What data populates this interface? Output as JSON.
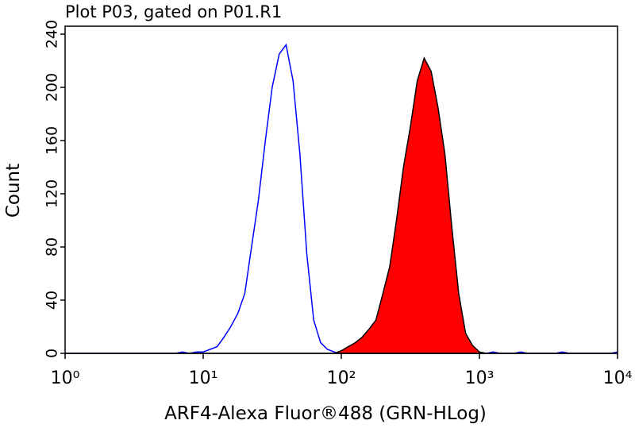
{
  "chart_data": {
    "type": "line",
    "title": "Plot P03, gated on P01.R1",
    "xlabel": "ARF4-Alexa Fluor®488 (GRN-HLog)",
    "ylabel": "Count",
    "xscale": "log",
    "xlim": [
      1,
      10000
    ],
    "xticks": [
      {
        "value": 1,
        "label": "10⁰"
      },
      {
        "value": 10,
        "label": "10¹"
      },
      {
        "value": 100,
        "label": "10²"
      },
      {
        "value": 1000,
        "label": "10³"
      },
      {
        "value": 10000,
        "label": "10⁴"
      }
    ],
    "ylim": [
      0,
      246
    ],
    "yticks": [
      0,
      40,
      80,
      120,
      160,
      200,
      240
    ],
    "x": [
      1,
      1.12,
      1.26,
      1.41,
      1.58,
      1.78,
      2,
      2.24,
      2.51,
      2.82,
      3.16,
      3.55,
      3.98,
      4.47,
      5.01,
      5.62,
      6.31,
      7.08,
      7.94,
      8.91,
      10,
      11.2,
      12.6,
      14.1,
      15.8,
      17.8,
      20,
      22.4,
      25.1,
      28.2,
      31.6,
      35.5,
      39.8,
      44.7,
      50.1,
      56.2,
      63.1,
      70.8,
      79.4,
      89.1,
      100,
      112,
      126,
      141,
      158,
      178,
      200,
      224,
      251,
      282,
      316,
      355,
      398,
      447,
      501,
      562,
      631,
      708,
      794,
      891,
      1000,
      1122,
      1259,
      1413,
      1585,
      1778,
      1995,
      2239,
      2512,
      2818,
      3162,
      3548,
      3981,
      4467,
      5012,
      5623,
      6310,
      7079,
      7943,
      8913,
      10000
    ],
    "series": [
      {
        "color": "#0000ff",
        "fill": false,
        "values": [
          0,
          0,
          0,
          0,
          0,
          0,
          0,
          0,
          0,
          0,
          0,
          0,
          0,
          0,
          0,
          0,
          0,
          1,
          0,
          1,
          1,
          3,
          5,
          12,
          20,
          30,
          45,
          80,
          115,
          160,
          200,
          225,
          232,
          205,
          150,
          75,
          25,
          8,
          3,
          1,
          0,
          0,
          0,
          0,
          0,
          0,
          0,
          0,
          0,
          0,
          0,
          0,
          0,
          0,
          0,
          0,
          0,
          0,
          0,
          0,
          0,
          0,
          1,
          0,
          0,
          0,
          1,
          0,
          0,
          0,
          0,
          0,
          1,
          0,
          0,
          0,
          0,
          0,
          0,
          0,
          1
        ]
      },
      {
        "color": "#ff0000",
        "fill": true,
        "values": [
          0,
          0,
          0,
          0,
          0,
          0,
          0,
          0,
          0,
          0,
          0,
          0,
          0,
          0,
          0,
          0,
          0,
          0,
          0,
          0,
          0,
          0,
          0,
          0,
          0,
          0,
          0,
          0,
          0,
          0,
          0,
          0,
          0,
          0,
          0,
          0,
          0,
          0,
          0,
          0,
          2,
          5,
          8,
          12,
          18,
          25,
          45,
          65,
          100,
          140,
          170,
          205,
          222,
          212,
          185,
          150,
          95,
          45,
          15,
          6,
          1,
          0,
          0,
          0,
          0,
          0,
          0,
          0,
          0,
          0,
          0,
          0,
          0,
          0,
          0,
          0,
          0,
          0,
          0,
          0,
          0
        ]
      }
    ]
  }
}
